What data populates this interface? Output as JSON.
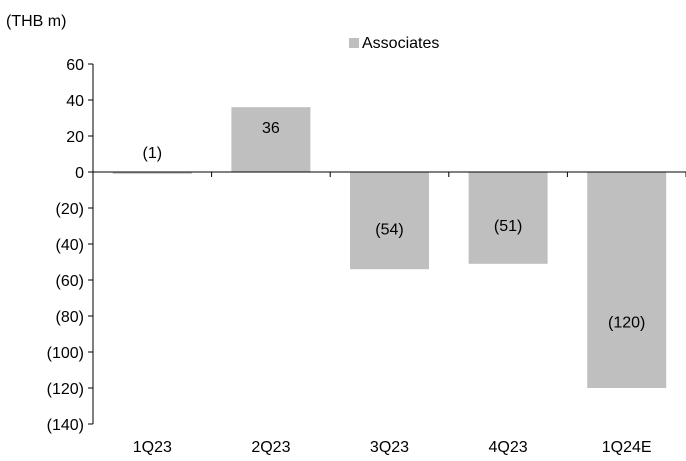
{
  "chart_data": {
    "type": "bar",
    "unit_label": "(THB m)",
    "categories": [
      "1Q23",
      "2Q23",
      "3Q23",
      "4Q23",
      "1Q24E"
    ],
    "series": [
      {
        "name": "Associates",
        "values": [
          -1,
          36,
          -54,
          -51,
          -120
        ],
        "data_labels": [
          "(1)",
          "36",
          "(54)",
          "(51)",
          "(120)"
        ]
      }
    ],
    "ylim": [
      -140,
      60
    ],
    "yticks": [
      60,
      40,
      20,
      0,
      -20,
      -40,
      -60,
      -80,
      -100,
      -120,
      -140
    ],
    "ytick_labels": [
      "60",
      "40",
      "20",
      "0",
      "(20)",
      "(40)",
      "(60)",
      "(80)",
      "(100)",
      "(120)",
      "(140)"
    ],
    "bar_color": "#BFBFBF",
    "axis_color": "#000000",
    "grid": false,
    "legend_position": "top-center"
  }
}
